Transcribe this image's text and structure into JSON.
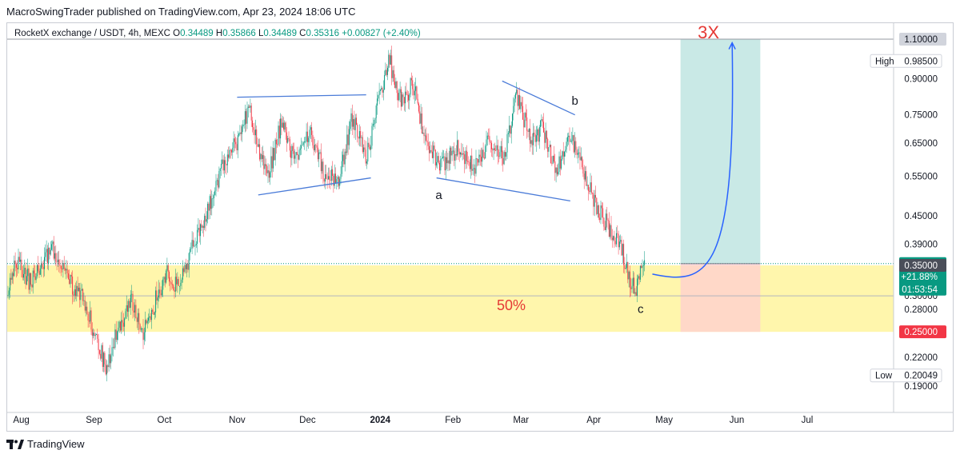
{
  "header": {
    "published_note": "MacroSwingTrader published on TradingView.com, Apr 23, 2024 18:06 UTC"
  },
  "symbol_bar": {
    "title": "RocketX exchange / USDT, 4h, MEXC",
    "open_label": "O",
    "open": "0.34489",
    "high_label": "H",
    "high": "0.35866",
    "low_label": "L",
    "low": "0.34489",
    "close_label": "C",
    "close": "0.35316",
    "change": "+0.00827 (+2.40%)"
  },
  "footer": {
    "brand": "TradingView"
  },
  "chart_data": {
    "type": "candlestick",
    "symbol": "RocketX exchange / USDT",
    "interval": "4h",
    "exchange": "MEXC",
    "y_scale": "log",
    "ylim": [
      0.18,
      1.2
    ],
    "x_tick_labels": [
      "Aug",
      "Sep",
      "Oct",
      "Nov",
      "Dec",
      "2024",
      "Feb",
      "Mar",
      "Apr",
      "May",
      "Jun",
      "Jul"
    ],
    "y_tick_labels": [
      "0.90000",
      "0.75000",
      "0.65000",
      "0.55000",
      "0.45000",
      "0.39000",
      "0.30000",
      "0.28000",
      "0.22000",
      "0.19000"
    ],
    "price_badges": [
      {
        "label": "",
        "value": "1.10000",
        "style": "gray"
      },
      {
        "label": "High",
        "value": "0.98500",
        "style": "outline"
      },
      {
        "label": "",
        "value": "0.35316\n+21.88%\n01:53:54",
        "style": "green"
      },
      {
        "label": "",
        "value": "0.35000",
        "style": "dark"
      },
      {
        "label": "",
        "value": "0.25000",
        "style": "red"
      },
      {
        "label": "Low",
        "value": "0.20049",
        "style": "outline"
      }
    ],
    "price_path": [
      {
        "date": "2023-07-26",
        "price": 0.3
      },
      {
        "date": "2023-07-30",
        "price": 0.36
      },
      {
        "date": "2023-08-05",
        "price": 0.32
      },
      {
        "date": "2023-08-14",
        "price": 0.38
      },
      {
        "date": "2023-08-20",
        "price": 0.33
      },
      {
        "date": "2023-08-28",
        "price": 0.29
      },
      {
        "date": "2023-09-02",
        "price": 0.24
      },
      {
        "date": "2023-09-06",
        "price": 0.21
      },
      {
        "date": "2023-09-12",
        "price": 0.26
      },
      {
        "date": "2023-09-17",
        "price": 0.29
      },
      {
        "date": "2023-09-22",
        "price": 0.25
      },
      {
        "date": "2023-09-28",
        "price": 0.3
      },
      {
        "date": "2023-10-02",
        "price": 0.34
      },
      {
        "date": "2023-10-07",
        "price": 0.31
      },
      {
        "date": "2023-10-12",
        "price": 0.37
      },
      {
        "date": "2023-10-18",
        "price": 0.44
      },
      {
        "date": "2023-10-26",
        "price": 0.58
      },
      {
        "date": "2023-11-01",
        "price": 0.66
      },
      {
        "date": "2023-11-06",
        "price": 0.78
      },
      {
        "date": "2023-11-10",
        "price": 0.62
      },
      {
        "date": "2023-11-14",
        "price": 0.55
      },
      {
        "date": "2023-11-20",
        "price": 0.72
      },
      {
        "date": "2023-11-26",
        "price": 0.59
      },
      {
        "date": "2023-12-02",
        "price": 0.68
      },
      {
        "date": "2023-12-08",
        "price": 0.56
      },
      {
        "date": "2023-12-14",
        "price": 0.53
      },
      {
        "date": "2023-12-20",
        "price": 0.74
      },
      {
        "date": "2023-12-26",
        "price": 0.6
      },
      {
        "date": "2024-01-02",
        "price": 0.88
      },
      {
        "date": "2024-01-05",
        "price": 0.985
      },
      {
        "date": "2024-01-10",
        "price": 0.8
      },
      {
        "date": "2024-01-15",
        "price": 0.88
      },
      {
        "date": "2024-01-20",
        "price": 0.66
      },
      {
        "date": "2024-01-27",
        "price": 0.58
      },
      {
        "date": "2024-02-03",
        "price": 0.63
      },
      {
        "date": "2024-02-10",
        "price": 0.57
      },
      {
        "date": "2024-02-17",
        "price": 0.66
      },
      {
        "date": "2024-02-23",
        "price": 0.6
      },
      {
        "date": "2024-02-28",
        "price": 0.84
      },
      {
        "date": "2024-03-05",
        "price": 0.66
      },
      {
        "date": "2024-03-10",
        "price": 0.7
      },
      {
        "date": "2024-03-16",
        "price": 0.56
      },
      {
        "date": "2024-03-21",
        "price": 0.68
      },
      {
        "date": "2024-03-27",
        "price": 0.58
      },
      {
        "date": "2024-04-03",
        "price": 0.46
      },
      {
        "date": "2024-04-08",
        "price": 0.42
      },
      {
        "date": "2024-04-13",
        "price": 0.38
      },
      {
        "date": "2024-04-17",
        "price": 0.32
      },
      {
        "date": "2024-04-19",
        "price": 0.31
      },
      {
        "date": "2024-04-21",
        "price": 0.35
      },
      {
        "date": "2024-04-23",
        "price": 0.353
      }
    ],
    "annotations": {
      "support_zone": {
        "top": 0.35,
        "bottom": 0.25,
        "color": "#fff59d",
        "label": "50%"
      },
      "position": {
        "entry": 0.353,
        "target": 1.1,
        "stop": 0.25,
        "start": "2024-05-08",
        "end": "2024-06-11",
        "profit_color": "#b2dfdb",
        "loss_color": "#ffcdd2"
      },
      "target_label": "3X",
      "wave_labels": [
        {
          "text": "a",
          "date": "2024-01-26",
          "price": 0.49
        },
        {
          "text": "b",
          "date": "2024-03-24",
          "price": 0.79
        },
        {
          "text": "c",
          "date": "2024-04-21",
          "price": 0.275
        }
      ],
      "trendlines": [
        {
          "from": {
            "date": "2023-11-01",
            "price": 0.82
          },
          "to": {
            "date": "2023-12-26",
            "price": 0.83
          }
        },
        {
          "from": {
            "date": "2023-11-10",
            "price": 0.5
          },
          "to": {
            "date": "2023-12-28",
            "price": 0.545
          }
        },
        {
          "from": {
            "date": "2024-01-25",
            "price": 0.545
          },
          "to": {
            "date": "2024-03-22",
            "price": 0.485
          }
        },
        {
          "from": {
            "date": "2024-02-22",
            "price": 0.89
          },
          "to": {
            "date": "2024-03-24",
            "price": 0.75
          }
        }
      ],
      "projection_curve": {
        "start": {
          "date": "2024-04-26",
          "price": 0.335
        },
        "peak": {
          "date": "2024-05-30",
          "price": 1.08
        }
      },
      "colors": {
        "up": "#089981",
        "down": "#f23645",
        "trendline": "#4a7bd8",
        "projection": "#2962ff",
        "label_red": "#e53935"
      }
    }
  }
}
